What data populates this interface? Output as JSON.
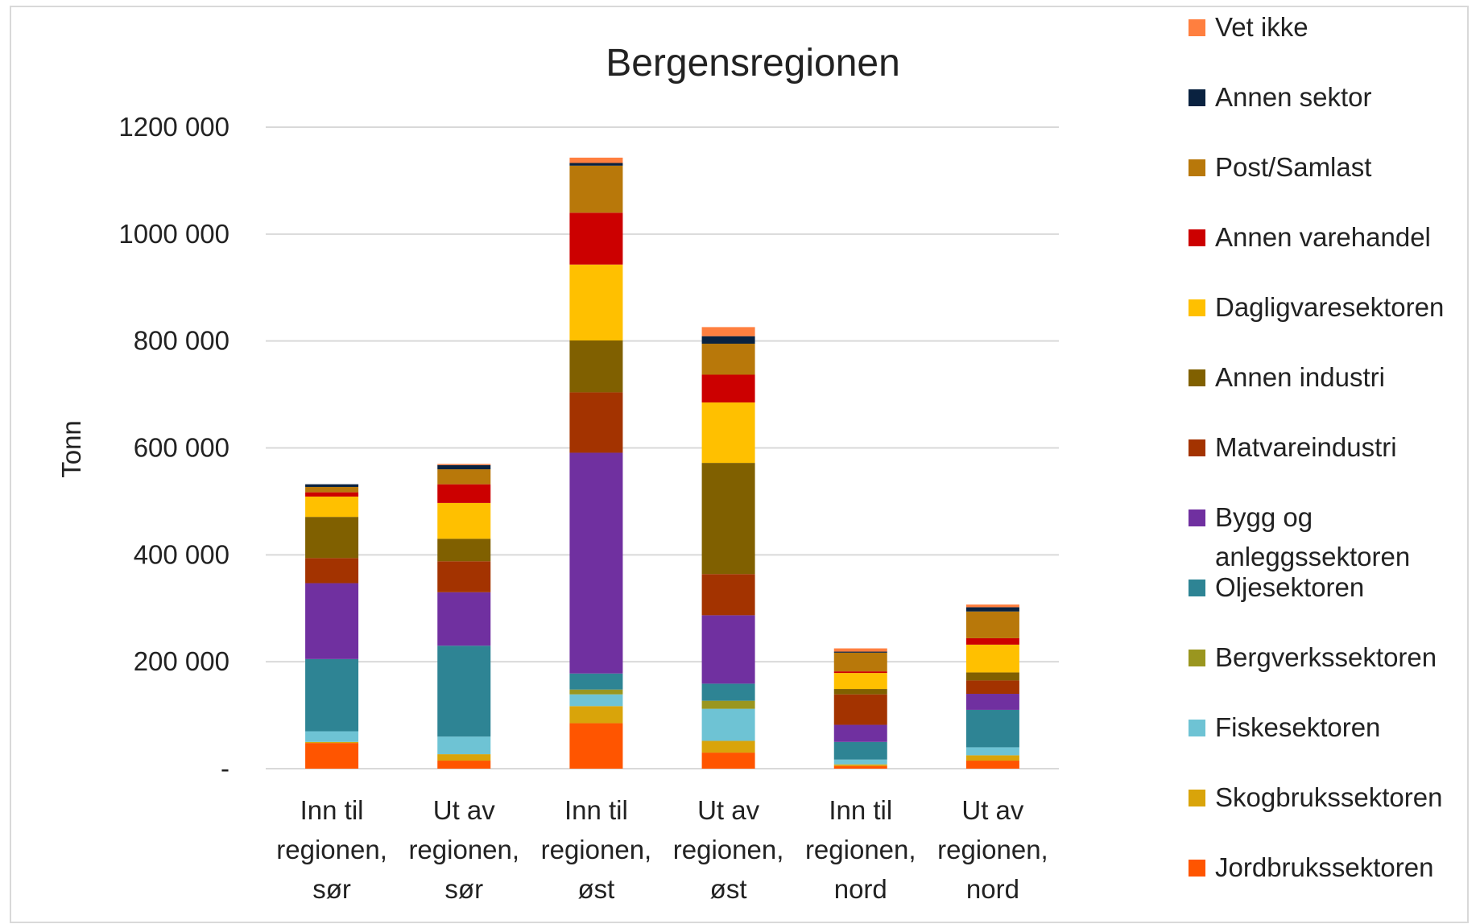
{
  "chart_data": {
    "type": "bar",
    "stacked": true,
    "title": "Bergensregionen",
    "xlabel": "",
    "ylabel": "Tonn",
    "ylim": [
      0,
      1200000
    ],
    "yticks": [
      0,
      200000,
      400000,
      600000,
      800000,
      1000000,
      1200000
    ],
    "ytick_labels": [
      "-",
      "200 000",
      "400 000",
      "600 000",
      "800 000",
      "1000 000",
      "1200 000"
    ],
    "grid": true,
    "legend_position": "right",
    "categories": [
      [
        "Inn til",
        "regionen,",
        "sør"
      ],
      [
        "Ut av",
        "regionen,",
        "sør"
      ],
      [
        "Inn til",
        "regionen,",
        "øst"
      ],
      [
        "Ut av",
        "regionen,",
        "øst"
      ],
      [
        "Inn til",
        "regionen,",
        "nord"
      ],
      [
        "Ut av",
        "regionen,",
        "nord"
      ]
    ],
    "series": [
      {
        "name": "Jordbrukssektoren",
        "color": "#FF5500",
        "values": [
          48000,
          15000,
          85000,
          30000,
          5000,
          15000
        ]
      },
      {
        "name": "Skogbrukssektoren",
        "color": "#D9A40A",
        "values": [
          2000,
          12000,
          32000,
          22000,
          3000,
          10000
        ]
      },
      {
        "name": "Fiskesektoren",
        "color": "#6EC3D4",
        "values": [
          20000,
          33000,
          22000,
          60000,
          9000,
          15000
        ]
      },
      {
        "name": "Bergverkssektoren",
        "color": "#9A961F",
        "values": [
          0,
          0,
          9000,
          15000,
          0,
          0
        ]
      },
      {
        "name": "Oljesektoren",
        "color": "#2E8494",
        "values": [
          135000,
          170000,
          30000,
          32000,
          33000,
          70000
        ]
      },
      {
        "name": "Bygg og anleggssektoren",
        "color": "#7030A0",
        "values": [
          142000,
          100000,
          413000,
          128000,
          32000,
          30000
        ]
      },
      {
        "name": "Matvareindustri",
        "color": "#A33300",
        "values": [
          47000,
          58000,
          113000,
          77000,
          57000,
          25000
        ]
      },
      {
        "name": "Annen industri",
        "color": "#806000",
        "values": [
          77000,
          42000,
          97000,
          208000,
          10000,
          15000
        ]
      },
      {
        "name": "Dagligvaresektoren",
        "color": "#FFC000",
        "values": [
          38000,
          67000,
          142000,
          113000,
          30000,
          52000
        ]
      },
      {
        "name": "Annen varehandel",
        "color": "#CC0000",
        "values": [
          8000,
          35000,
          97000,
          52000,
          3000,
          12000
        ]
      },
      {
        "name": "Post/Samlast",
        "color": "#B8780A",
        "values": [
          10000,
          28000,
          88000,
          58000,
          35000,
          50000
        ]
      },
      {
        "name": "Annen sektor",
        "color": "#0A2240",
        "values": [
          5000,
          8000,
          5000,
          14000,
          2000,
          8000
        ]
      },
      {
        "name": "Vet ikke",
        "color": "#FF7F3F",
        "values": [
          0,
          2000,
          10000,
          17000,
          6000,
          5000
        ]
      }
    ]
  }
}
